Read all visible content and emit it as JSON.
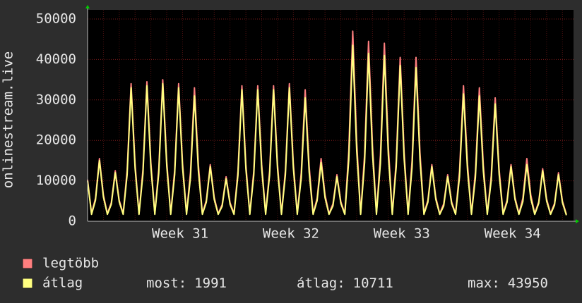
{
  "chart_data": {
    "type": "line",
    "y_label": "onlinestream.live",
    "x": [
      0,
      0.25,
      0.5,
      0.75,
      1,
      1.25,
      1.5,
      1.75,
      2,
      2.25,
      2.5,
      2.75,
      3,
      3.25,
      3.5,
      3.75,
      4,
      4.25,
      4.5,
      4.75,
      5,
      5.25,
      5.5,
      5.75,
      6,
      6.25,
      6.5,
      6.75,
      7,
      7.25,
      7.5,
      7.75,
      8,
      8.25,
      8.5,
      8.75,
      9,
      9.25,
      9.5,
      9.75,
      10,
      10.25,
      10.5,
      10.75,
      11,
      11.25,
      11.5,
      11.75,
      12,
      12.25,
      12.5,
      12.75,
      13,
      13.25,
      13.5,
      13.75,
      14,
      14.25,
      14.5,
      14.75,
      15,
      15.25,
      15.5,
      15.75,
      16,
      16.25,
      16.5,
      16.75,
      17,
      17.25,
      17.5,
      17.75,
      18,
      18.25,
      18.5,
      18.75,
      19,
      19.25,
      19.5,
      19.75,
      20,
      20.25,
      20.5,
      20.75,
      21,
      21.25,
      21.5,
      21.75,
      22,
      22.25,
      22.5,
      22.75,
      23,
      23.25,
      23.5,
      23.75,
      24,
      24.25,
      24.5,
      24.75,
      25,
      25.25,
      25.5,
      25.75,
      26,
      26.25,
      26.5,
      26.75,
      27,
      27.25,
      27.5,
      27.75,
      28,
      28.25,
      28.5,
      28.75,
      29,
      29.25,
      29.5,
      29.75,
      30,
      30.25
    ],
    "series": [
      {
        "name": "legtöbb",
        "color": "#ff7f7f",
        "values": [
          10300,
          1900,
          5700,
          15500,
          6500,
          1900,
          4600,
          12500,
          5200,
          1900,
          12600,
          34000,
          14300,
          1900,
          12800,
          34500,
          14500,
          1900,
          13000,
          35000,
          14700,
          1900,
          12600,
          34000,
          14300,
          1900,
          12200,
          33000,
          13900,
          1900,
          5200,
          14000,
          5900,
          1900,
          4100,
          11000,
          4600,
          1900,
          12400,
          33500,
          14100,
          1900,
          12400,
          33500,
          14100,
          1900,
          12400,
          33500,
          14100,
          1900,
          12600,
          34000,
          14300,
          1900,
          12000,
          32500,
          13700,
          1900,
          5700,
          15500,
          6500,
          1900,
          4300,
          11500,
          4800,
          1900,
          17400,
          47000,
          19700,
          1900,
          16500,
          44500,
          18700,
          1900,
          16300,
          44000,
          18500,
          1900,
          15000,
          40500,
          17000,
          1900,
          15000,
          40500,
          17000,
          1900,
          5200,
          14000,
          5900,
          1900,
          4300,
          11500,
          4800,
          1900,
          12400,
          33500,
          14100,
          1900,
          12200,
          33000,
          13900,
          1900,
          11300,
          30500,
          12800,
          1900,
          5200,
          14000,
          5900,
          1900,
          5700,
          15500,
          6500,
          1900,
          4800,
          13000,
          5500,
          1900,
          4400,
          12000,
          5000,
          1700
        ]
      },
      {
        "name": "átlag",
        "color": "#ffff80",
        "values": [
          10000,
          1700,
          5200,
          15000,
          6000,
          1700,
          4200,
          12000,
          4800,
          1700,
          11500,
          33000,
          13200,
          1700,
          11700,
          33500,
          13400,
          1700,
          11900,
          34000,
          13600,
          1700,
          11500,
          33000,
          13200,
          1700,
          10800,
          31000,
          12400,
          1700,
          4700,
          13500,
          5400,
          1700,
          3700,
          10500,
          4200,
          1700,
          11400,
          32500,
          13000,
          1700,
          11400,
          32500,
          13000,
          1700,
          11400,
          32500,
          13000,
          1700,
          11500,
          33000,
          13200,
          1700,
          10700,
          30500,
          12200,
          1700,
          5100,
          14500,
          5800,
          1700,
          3800,
          11000,
          4400,
          1700,
          15200,
          43500,
          17400,
          1700,
          14500,
          41500,
          16600,
          1700,
          14300,
          41000,
          16400,
          1700,
          13500,
          38500,
          15400,
          1700,
          13300,
          38000,
          15200,
          1700,
          4700,
          13500,
          5400,
          1700,
          3800,
          11000,
          4400,
          1700,
          11000,
          31500,
          12600,
          1700,
          10800,
          31000,
          12400,
          1700,
          10100,
          29000,
          11600,
          1700,
          4700,
          13500,
          5400,
          1700,
          4900,
          14000,
          5600,
          1700,
          4400,
          12500,
          5000,
          1700,
          4000,
          11500,
          4600,
          1500
        ]
      }
    ],
    "xlim": [
      0,
      30.7
    ],
    "xticks": [
      {
        "value": 5.85,
        "label": "Week 31"
      },
      {
        "value": 12.85,
        "label": "Week 32"
      },
      {
        "value": 19.85,
        "label": "Week 33"
      },
      {
        "value": 26.85,
        "label": "Week 34"
      }
    ],
    "ylim": [
      0,
      50000
    ],
    "yticks": [
      0,
      10000,
      20000,
      30000,
      40000,
      50000
    ],
    "grid": true,
    "stats": [
      {
        "label": "most:",
        "value": 1991
      },
      {
        "label": "átlag:",
        "value": 10711
      },
      {
        "label": "max:",
        "value": 43950
      }
    ]
  }
}
